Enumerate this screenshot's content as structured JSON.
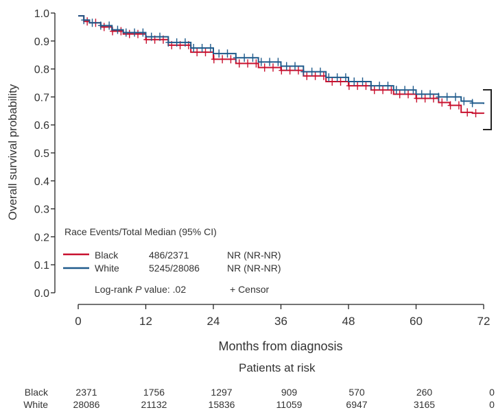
{
  "chart_data": {
    "type": "line",
    "subtype": "kaplan-meier",
    "xlabel": "Months from diagnosis",
    "ylabel": "Overall survival probability",
    "xlim": [
      0,
      72
    ],
    "ylim": [
      0.0,
      1.0
    ],
    "xticks": [
      "0",
      "12",
      "24",
      "36",
      "48",
      "60",
      "72"
    ],
    "yticks": [
      "0.0",
      "0.1",
      "0.2",
      "0.3",
      "0.4",
      "0.5",
      "0.6",
      "0.7",
      "0.8",
      "0.9",
      "1.0"
    ],
    "grid": false,
    "legend": {
      "header": "Race Events/Total Median (95% CI)",
      "placement": "bottom-left",
      "rows": [
        {
          "race": "Black",
          "events_total": "486/2371",
          "median": "NR (NR-NR)"
        },
        {
          "race": "White",
          "events_total": "5245/28086",
          "median": "NR (NR-NR)"
        }
      ],
      "logrank_prefix": "Log-rank ",
      "logrank_p": "P",
      "logrank_suffix": " value: .02",
      "censor_label": "+ Censor"
    },
    "bracket": "right of curve ends, spanning approx 0.63 to 0.73",
    "series": [
      {
        "name": "Black",
        "color": "#c8102e",
        "x": [
          0,
          1,
          2,
          4,
          6,
          8,
          12,
          16,
          20,
          24,
          28,
          32,
          36,
          40,
          44,
          48,
          52,
          56,
          60,
          64,
          66,
          68,
          70,
          72
        ],
        "y": [
          0.99,
          0.97,
          0.965,
          0.95,
          0.935,
          0.925,
          0.905,
          0.885,
          0.86,
          0.835,
          0.82,
          0.805,
          0.795,
          0.775,
          0.755,
          0.74,
          0.725,
          0.71,
          0.695,
          0.68,
          0.67,
          0.645,
          0.642,
          0.64
        ]
      },
      {
        "name": "White",
        "color": "#1f5a8b",
        "x": [
          0,
          1,
          2,
          4,
          6,
          8,
          12,
          16,
          20,
          24,
          28,
          32,
          36,
          40,
          44,
          48,
          52,
          56,
          60,
          64,
          68,
          70,
          72
        ],
        "y": [
          0.99,
          0.975,
          0.965,
          0.955,
          0.94,
          0.93,
          0.915,
          0.895,
          0.875,
          0.855,
          0.84,
          0.825,
          0.81,
          0.79,
          0.77,
          0.755,
          0.74,
          0.725,
          0.71,
          0.7,
          0.685,
          0.678,
          0.675
        ]
      }
    ]
  },
  "risk_table": {
    "title": "Patients at risk",
    "rows": [
      {
        "label": "Black",
        "values": [
          "2371",
          "1756",
          "1297",
          "909",
          "570",
          "260",
          "0"
        ]
      },
      {
        "label": "White",
        "values": [
          "28086",
          "21132",
          "15836",
          "11059",
          "6947",
          "3165",
          "0"
        ]
      }
    ]
  }
}
